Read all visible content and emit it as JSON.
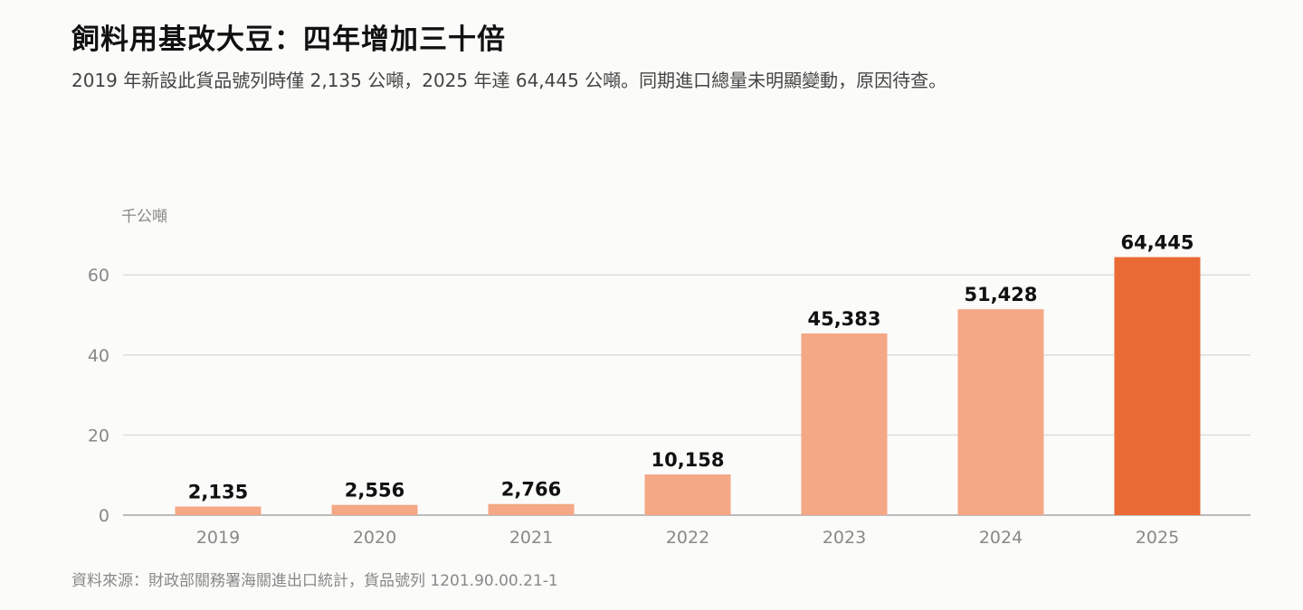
{
  "header": {
    "title": "飼料用基改大豆：四年增加三十倍",
    "subtitle": "2019 年新設此貨品號列時僅 2,135 公噸，2025 年達 64,445 公噸。同期進口總量未明顯變動，原因待查。"
  },
  "footer": {
    "source": "資料來源：財政部關務署海關進出口統計，貨品號列 1201.90.00.21-1"
  },
  "chart_data": {
    "type": "bar",
    "categories": [
      "2019",
      "2020",
      "2021",
      "2022",
      "2023",
      "2024",
      "2025"
    ],
    "values": [
      2135,
      2556,
      2766,
      10158,
      45383,
      51428,
      64445
    ],
    "value_labels": [
      "2,135",
      "2,556",
      "2,766",
      "10,158",
      "45,383",
      "51,428",
      "64,445"
    ],
    "ylabel": "千公噸",
    "yticks": [
      0,
      20,
      40,
      60
    ],
    "ylim": [
      0,
      60
    ],
    "grid": true,
    "colors": {
      "bar": "#f4a886",
      "highlight": "#ea6a36",
      "grid": "#dddddd",
      "axis": "#bbbbbb",
      "tick_text": "#888888",
      "value_text": "#111111"
    },
    "highlight_index": 6
  }
}
